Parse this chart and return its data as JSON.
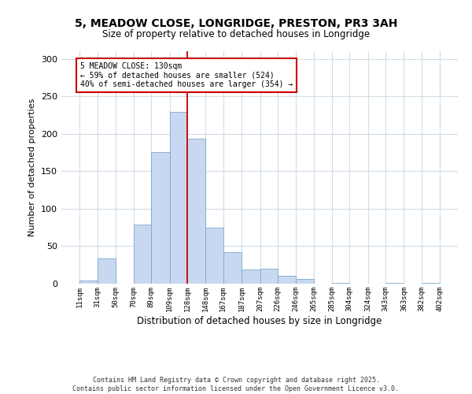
{
  "title": "5, MEADOW CLOSE, LONGRIDGE, PRESTON, PR3 3AH",
  "subtitle": "Size of property relative to detached houses in Longridge",
  "xlabel": "Distribution of detached houses by size in Longridge",
  "ylabel": "Number of detached properties",
  "bin_labels": [
    "11sqm",
    "31sqm",
    "50sqm",
    "70sqm",
    "89sqm",
    "109sqm",
    "128sqm",
    "148sqm",
    "167sqm",
    "187sqm",
    "207sqm",
    "226sqm",
    "246sqm",
    "265sqm",
    "285sqm",
    "304sqm",
    "324sqm",
    "343sqm",
    "363sqm",
    "382sqm",
    "402sqm"
  ],
  "bin_edges": [
    11,
    31,
    50,
    70,
    89,
    109,
    128,
    148,
    167,
    187,
    207,
    226,
    246,
    265,
    285,
    304,
    324,
    343,
    363,
    382,
    402
  ],
  "bar_heights": [
    4,
    34,
    0,
    79,
    175,
    229,
    193,
    75,
    42,
    19,
    20,
    10,
    6,
    0,
    1,
    0,
    0,
    1,
    0,
    1
  ],
  "bar_color": "#c8d8f0",
  "bar_edge_color": "#7aaad0",
  "vline_x": 128,
  "vline_color": "#cc0000",
  "annotation_text": "5 MEADOW CLOSE: 130sqm\n← 59% of detached houses are smaller (524)\n40% of semi-detached houses are larger (354) →",
  "annotation_box_color": "#cc0000",
  "ylim": [
    0,
    310
  ],
  "yticks": [
    0,
    50,
    100,
    150,
    200,
    250,
    300
  ],
  "background_color": "#ffffff",
  "grid_color": "#d0dce8",
  "footer_line1": "Contains HM Land Registry data © Crown copyright and database right 2025.",
  "footer_line2": "Contains public sector information licensed under the Open Government Licence v3.0."
}
